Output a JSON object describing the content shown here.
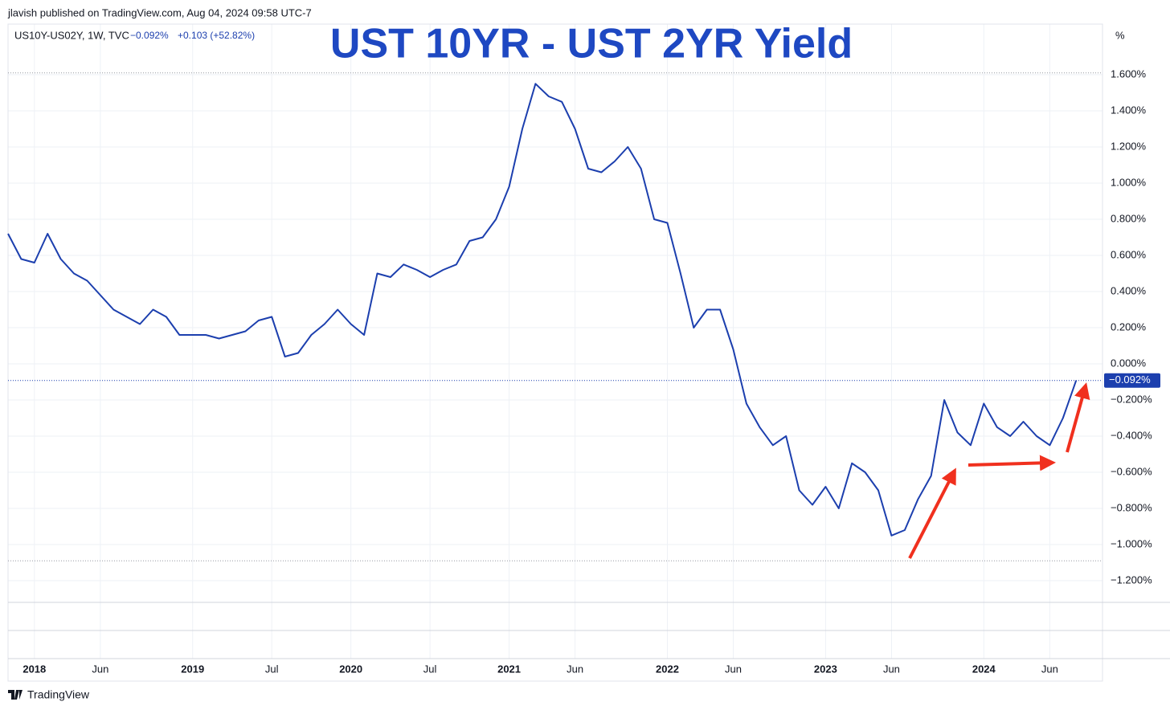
{
  "chart_data": {
    "type": "line",
    "publisher": "jlavish published on TradingView.com, Aug 04, 2024 09:58 UTC-7",
    "symbol": "US10Y-US02Y, 1W, TVC",
    "change": "+0.103 (+52.82%)",
    "title": "UST 10YR - UST 2YR Yield",
    "y_unit": "%",
    "brand": "TradingView",
    "color": "#1c3fae",
    "grid": true,
    "x": [
      "2017-11",
      "2017-12",
      "2018-01",
      "2018-02",
      "2018-03",
      "2018-04",
      "2018-05",
      "2018-06",
      "2018-07",
      "2018-08",
      "2018-09",
      "2018-10",
      "2018-11",
      "2018-12",
      "2019-01",
      "2019-02",
      "2019-03",
      "2019-04",
      "2019-05",
      "2019-06",
      "2019-07",
      "2019-08",
      "2019-09",
      "2019-10",
      "2019-11",
      "2019-12",
      "2020-01",
      "2020-02",
      "2020-03",
      "2020-04",
      "2020-05",
      "2020-06",
      "2020-07",
      "2020-08",
      "2020-09",
      "2020-10",
      "2020-11",
      "2020-12",
      "2021-01",
      "2021-02",
      "2021-03",
      "2021-04",
      "2021-05",
      "2021-06",
      "2021-07",
      "2021-08",
      "2021-09",
      "2021-10",
      "2021-11",
      "2021-12",
      "2022-01",
      "2022-02",
      "2022-03",
      "2022-04",
      "2022-05",
      "2022-06",
      "2022-07",
      "2022-08",
      "2022-09",
      "2022-10",
      "2022-11",
      "2022-12",
      "2023-01",
      "2023-02",
      "2023-03",
      "2023-04",
      "2023-05",
      "2023-06",
      "2023-07",
      "2023-08",
      "2023-09",
      "2023-10",
      "2023-11",
      "2023-12",
      "2024-01",
      "2024-02",
      "2024-03",
      "2024-04",
      "2024-05",
      "2024-06",
      "2024-07",
      "2024-08"
    ],
    "values": [
      0.72,
      0.58,
      0.56,
      0.72,
      0.58,
      0.5,
      0.46,
      0.38,
      0.3,
      0.26,
      0.22,
      0.3,
      0.26,
      0.16,
      0.16,
      0.16,
      0.14,
      0.16,
      0.18,
      0.24,
      0.26,
      0.04,
      0.06,
      0.16,
      0.22,
      0.3,
      0.22,
      0.16,
      0.5,
      0.48,
      0.55,
      0.52,
      0.48,
      0.52,
      0.55,
      0.68,
      0.7,
      0.8,
      0.98,
      1.3,
      1.55,
      1.48,
      1.45,
      1.3,
      1.08,
      1.06,
      1.12,
      1.2,
      1.08,
      0.8,
      0.78,
      0.5,
      0.2,
      0.3,
      0.3,
      0.08,
      -0.22,
      -0.35,
      -0.45,
      -0.4,
      -0.7,
      -0.78,
      -0.68,
      -0.8,
      -0.55,
      -0.6,
      -0.7,
      -0.95,
      -0.92,
      -0.75,
      -0.62,
      -0.2,
      -0.38,
      -0.45,
      -0.22,
      -0.35,
      -0.4,
      -0.32,
      -0.4,
      -0.45,
      -0.3,
      -0.092
    ],
    "xlim": [
      "2017-11",
      "2024-10"
    ],
    "xticks": [
      {
        "value": "2018-01",
        "label": "2018"
      },
      {
        "value": "2018-06",
        "label": "Jun"
      },
      {
        "value": "2019-01",
        "label": "2019"
      },
      {
        "value": "2019-07",
        "label": "Jul"
      },
      {
        "value": "2020-01",
        "label": "2020"
      },
      {
        "value": "2020-07",
        "label": "Jul"
      },
      {
        "value": "2021-01",
        "label": "2021"
      },
      {
        "value": "2021-06",
        "label": "Jun"
      },
      {
        "value": "2022-01",
        "label": "2022"
      },
      {
        "value": "2022-06",
        "label": "Jun"
      },
      {
        "value": "2023-01",
        "label": "2023"
      },
      {
        "value": "2023-06",
        "label": "Jun"
      },
      {
        "value": "2024-01",
        "label": "2024"
      },
      {
        "value": "2024-06",
        "label": "Jun"
      }
    ],
    "ylim": [
      -1.32,
      1.88
    ],
    "yticks": [
      {
        "value": 1.6,
        "label": "1.600%"
      },
      {
        "value": 1.4,
        "label": "1.400%"
      },
      {
        "value": 1.2,
        "label": "1.200%"
      },
      {
        "value": 1.0,
        "label": "1.000%"
      },
      {
        "value": 0.8,
        "label": "0.800%"
      },
      {
        "value": 0.6,
        "label": "0.600%"
      },
      {
        "value": 0.4,
        "label": "0.400%"
      },
      {
        "value": 0.2,
        "label": "0.200%"
      },
      {
        "value": 0,
        "label": "0.000%"
      },
      {
        "value": -0.2,
        "label": "−0.200%"
      },
      {
        "value": -0.4,
        "label": "−0.400%"
      },
      {
        "value": -0.6,
        "label": "−0.600%"
      },
      {
        "value": -0.8,
        "label": "−0.800%"
      },
      {
        "value": -1.0,
        "label": "−1.000%"
      },
      {
        "value": -1.2,
        "label": "−1.200%"
      }
    ],
    "high": 1.61,
    "low": -1.09,
    "last": {
      "value": -0.092,
      "label": "−0.092%"
    }
  }
}
